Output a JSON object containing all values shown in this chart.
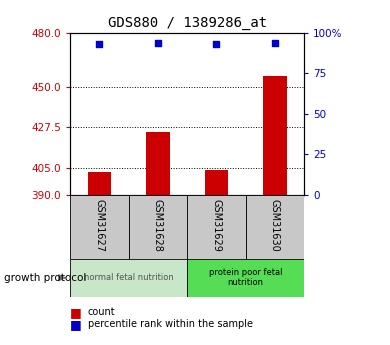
{
  "title": "GDS880 / 1389286_at",
  "samples": [
    "GSM31627",
    "GSM31628",
    "GSM31629",
    "GSM31630"
  ],
  "bar_values": [
    403,
    425,
    404,
    456
  ],
  "bar_bottom": 390,
  "percentile_values": [
    93,
    93.5,
    93,
    93.8
  ],
  "ylim_left": [
    390,
    480
  ],
  "ylim_right": [
    0,
    100
  ],
  "yticks_left": [
    390,
    405,
    427.5,
    450,
    480
  ],
  "yticks_right": [
    0,
    25,
    50,
    75,
    100
  ],
  "ytick_right_labels": [
    "0",
    "25",
    "50",
    "75",
    "100%"
  ],
  "bar_color": "#cc0000",
  "dot_color": "#0000cc",
  "grid_lines": [
    450,
    427.5,
    405
  ],
  "group1_label": "normal fetal nutrition",
  "group2_label": "protein poor fetal\nnutrition",
  "group1_bg": "#c8e6c8",
  "group2_bg": "#55dd55",
  "factor_label": "growth protocol",
  "legend_count_label": "count",
  "legend_pct_label": "percentile rank within the sample",
  "left_tick_color": "#cc0000",
  "right_tick_color": "#0000cc"
}
